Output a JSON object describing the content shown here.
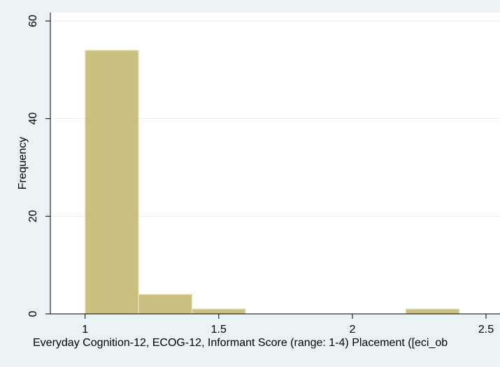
{
  "chart_data": {
    "type": "bar",
    "title": "",
    "xlabel": "Everyday Cognition-12, ECOG-12, Informant Score (range: 1-4)  Placement ([eci_ob",
    "ylabel": "Frequency",
    "xlim": [
      0.87,
      2.5
    ],
    "ylim": [
      0,
      60
    ],
    "x_ticks": [
      "1",
      "1.5",
      "2",
      "2.5"
    ],
    "y_ticks": [
      "0",
      "20",
      "40",
      "60"
    ],
    "grid": "horizontal",
    "bar_color": "#c9c07f",
    "bar_edge_color": "#ece7b8",
    "bins": [
      {
        "x0": 1.0,
        "x1": 1.2,
        "count": 54
      },
      {
        "x0": 1.2,
        "x1": 1.4,
        "count": 4
      },
      {
        "x0": 1.4,
        "x1": 1.6,
        "count": 1
      },
      {
        "x0": 1.6,
        "x1": 1.8,
        "count": 0
      },
      {
        "x0": 1.8,
        "x1": 2.0,
        "count": 0
      },
      {
        "x0": 2.0,
        "x1": 2.2,
        "count": 0
      },
      {
        "x0": 2.2,
        "x1": 2.4,
        "count": 1
      }
    ]
  },
  "colors": {
    "background": "#eaf2f3",
    "plot_area": "#ffffff",
    "grid": "#e6eef0",
    "axis": "#000000"
  }
}
